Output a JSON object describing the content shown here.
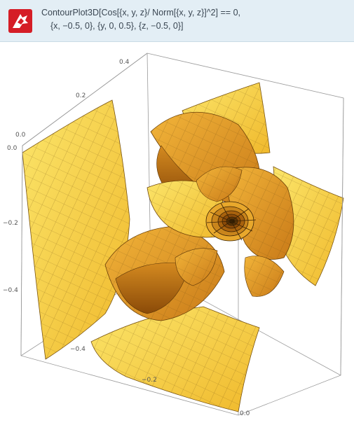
{
  "header": {
    "logo_icon": "wolfram-alpha-spikey-icon",
    "query_line1": "ContourPlot3D[Cos[{x, y, z}/ Norm[{x, y, z}]^2] == 0,",
    "query_line2": "{x, −0.5, 0}, {y, 0, 0.5}, {z, −0.5, 0}]"
  },
  "plot": {
    "surface_color_light": "#f7d64a",
    "surface_color_dark": "#a8620e",
    "ticks_top": [
      "0.4",
      "0.2",
      "0.0"
    ],
    "ticks_left": [
      "0.0",
      "−0.2",
      "−0.4"
    ],
    "ticks_bottom_left": [
      "−0.4",
      "−0.2"
    ],
    "tick_bottom_right": "0.0"
  }
}
